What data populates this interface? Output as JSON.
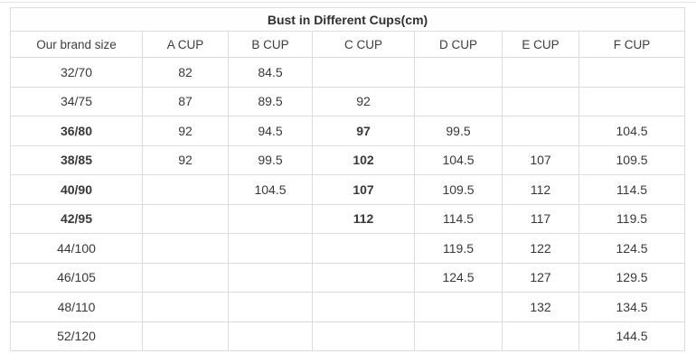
{
  "table": {
    "title": "Bust in Different Cups(cm)",
    "columns": [
      "Our brand size",
      "A CUP",
      "B CUP",
      "C CUP",
      "D CUP",
      "E CUP",
      "F CUP"
    ],
    "rows": [
      {
        "cells": [
          {
            "text": "32/70",
            "accent": false
          },
          {
            "text": "82",
            "accent": false
          },
          {
            "text": "84.5",
            "accent": false
          },
          {
            "text": "",
            "accent": false
          },
          {
            "text": "",
            "accent": false
          },
          {
            "text": "",
            "accent": false
          },
          {
            "text": "",
            "accent": false
          }
        ]
      },
      {
        "cells": [
          {
            "text": "34/75",
            "accent": false
          },
          {
            "text": "87",
            "accent": false
          },
          {
            "text": "89.5",
            "accent": false
          },
          {
            "text": "92",
            "accent": false
          },
          {
            "text": "",
            "accent": false
          },
          {
            "text": "",
            "accent": false
          },
          {
            "text": "",
            "accent": false
          }
        ]
      },
      {
        "cells": [
          {
            "text": "36/80",
            "accent": true
          },
          {
            "text": "92",
            "accent": false
          },
          {
            "text": "94.5",
            "accent": false
          },
          {
            "text": "97",
            "accent": true
          },
          {
            "text": "99.5",
            "accent": false
          },
          {
            "text": "",
            "accent": false
          },
          {
            "text": "104.5",
            "accent": false
          }
        ]
      },
      {
        "cells": [
          {
            "text": "38/85",
            "accent": true
          },
          {
            "text": "92",
            "accent": false
          },
          {
            "text": "99.5",
            "accent": false
          },
          {
            "text": "102",
            "accent": true
          },
          {
            "text": "104.5",
            "accent": false
          },
          {
            "text": "107",
            "accent": false
          },
          {
            "text": "109.5",
            "accent": false
          }
        ]
      },
      {
        "cells": [
          {
            "text": "40/90",
            "accent": true
          },
          {
            "text": "",
            "accent": false
          },
          {
            "text": "104.5",
            "accent": false
          },
          {
            "text": "107",
            "accent": true
          },
          {
            "text": "109.5",
            "accent": false
          },
          {
            "text": "112",
            "accent": false
          },
          {
            "text": "114.5",
            "accent": false
          }
        ]
      },
      {
        "cells": [
          {
            "text": "42/95",
            "accent": true
          },
          {
            "text": "",
            "accent": false
          },
          {
            "text": "",
            "accent": false
          },
          {
            "text": "112",
            "accent": true
          },
          {
            "text": "114.5",
            "accent": false
          },
          {
            "text": "117",
            "accent": false
          },
          {
            "text": "119.5",
            "accent": false
          }
        ]
      },
      {
        "cells": [
          {
            "text": "44/100",
            "accent": false
          },
          {
            "text": "",
            "accent": false
          },
          {
            "text": "",
            "accent": false
          },
          {
            "text": "",
            "accent": false
          },
          {
            "text": "119.5",
            "accent": false
          },
          {
            "text": "122",
            "accent": false
          },
          {
            "text": "124.5",
            "accent": false
          }
        ]
      },
      {
        "cells": [
          {
            "text": "46/105",
            "accent": false
          },
          {
            "text": "",
            "accent": false
          },
          {
            "text": "",
            "accent": false
          },
          {
            "text": "",
            "accent": false
          },
          {
            "text": "124.5",
            "accent": false
          },
          {
            "text": "127",
            "accent": false
          },
          {
            "text": "129.5",
            "accent": false
          }
        ]
      },
      {
        "cells": [
          {
            "text": "48/110",
            "accent": false
          },
          {
            "text": "",
            "accent": false
          },
          {
            "text": "",
            "accent": false
          },
          {
            "text": "",
            "accent": false
          },
          {
            "text": "",
            "accent": false
          },
          {
            "text": "132",
            "accent": false
          },
          {
            "text": "134.5",
            "accent": false
          }
        ]
      },
      {
        "cells": [
          {
            "text": "52/120",
            "accent": false
          },
          {
            "text": "",
            "accent": false
          },
          {
            "text": "",
            "accent": false
          },
          {
            "text": "",
            "accent": false
          },
          {
            "text": "",
            "accent": false
          },
          {
            "text": "",
            "accent": false
          },
          {
            "text": "144.5",
            "accent": false
          }
        ]
      }
    ],
    "colors": {
      "accent_orange": "#e6963c",
      "body_text": "#383838",
      "border": "#dcdcdc"
    }
  }
}
